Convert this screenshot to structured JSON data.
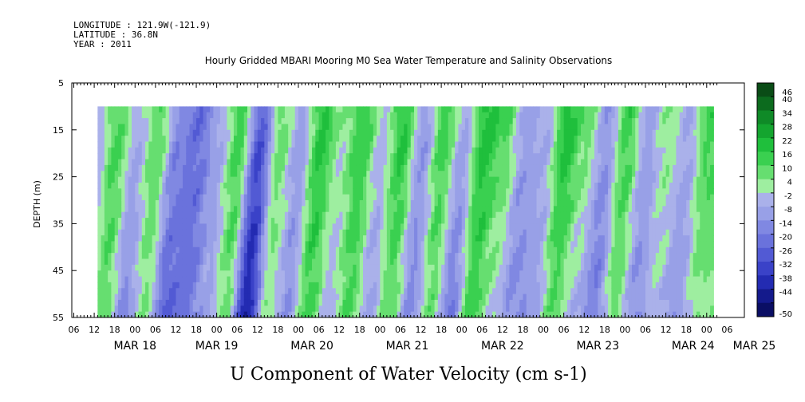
{
  "header": {
    "longitude": "LONGITUDE : 121.9W(-121.9)",
    "latitude": "LATITUDE : 36.8N",
    "year": "YEAR : 2011",
    "title": "Hourly Gridded MBARI Mooring M0 Sea Water Temperature and Salinity Observations"
  },
  "chart_data": {
    "type": "heatmap",
    "title": "U Component of Water Velocity (cm s-1)",
    "ylabel": "DEPTH (m)",
    "xlabel": "",
    "ylim": [
      55,
      5
    ],
    "y_ticks": [
      5,
      15,
      25,
      35,
      45,
      55
    ],
    "data_depth_range": [
      10,
      55
    ],
    "x_hour_ticks": [
      "06",
      "12",
      "18",
      "00",
      "06",
      "12",
      "18",
      "00",
      "06",
      "12",
      "18",
      "00",
      "06",
      "12",
      "18",
      "00",
      "06",
      "12",
      "18",
      "00",
      "06",
      "12",
      "18",
      "00",
      "06",
      "12",
      "18",
      "00",
      "06",
      "12",
      "18",
      "00",
      "06"
    ],
    "x_day_labels": [
      "MAR 18",
      "MAR 19",
      "MAR 20",
      "MAR 21",
      "MAR 22",
      "MAR 23",
      "MAR 24",
      "MAR 25"
    ],
    "x_start_hour_offset": 6,
    "data_start_hour_offset": 13,
    "total_hours": 194,
    "colorbar": {
      "levels": [
        "46",
        "40",
        "34",
        "28",
        "22",
        "16",
        "10",
        "4",
        "-2",
        "-8",
        "-14",
        "-20",
        "-26",
        "-32",
        "-38",
        "-44",
        "-50"
      ],
      "min": -50,
      "max": 46
    },
    "grid": false,
    "approx_profile_hours": [
      13,
      19,
      25,
      31,
      37,
      43,
      49,
      55,
      61,
      67,
      73,
      79,
      85,
      91,
      97,
      103,
      109,
      115,
      121,
      127,
      133,
      139,
      145,
      151,
      157,
      163,
      169,
      175,
      181,
      187,
      193
    ],
    "approx_surface_values": [
      -6,
      12,
      -6,
      10,
      -16,
      -24,
      -8,
      14,
      -28,
      8,
      -10,
      18,
      2,
      16,
      -4,
      18,
      -12,
      14,
      -8,
      20,
      12,
      -10,
      -6,
      20,
      8,
      -12,
      14,
      -10,
      4,
      -8,
      14
    ],
    "approx_bottom_values": [
      -12,
      8,
      -16,
      4,
      -26,
      -22,
      -10,
      6,
      -44,
      2,
      -14,
      12,
      -6,
      10,
      -10,
      8,
      -16,
      6,
      -20,
      12,
      -2,
      -16,
      -12,
      8,
      -6,
      -20,
      6,
      -14,
      -4,
      -14,
      2
    ]
  }
}
